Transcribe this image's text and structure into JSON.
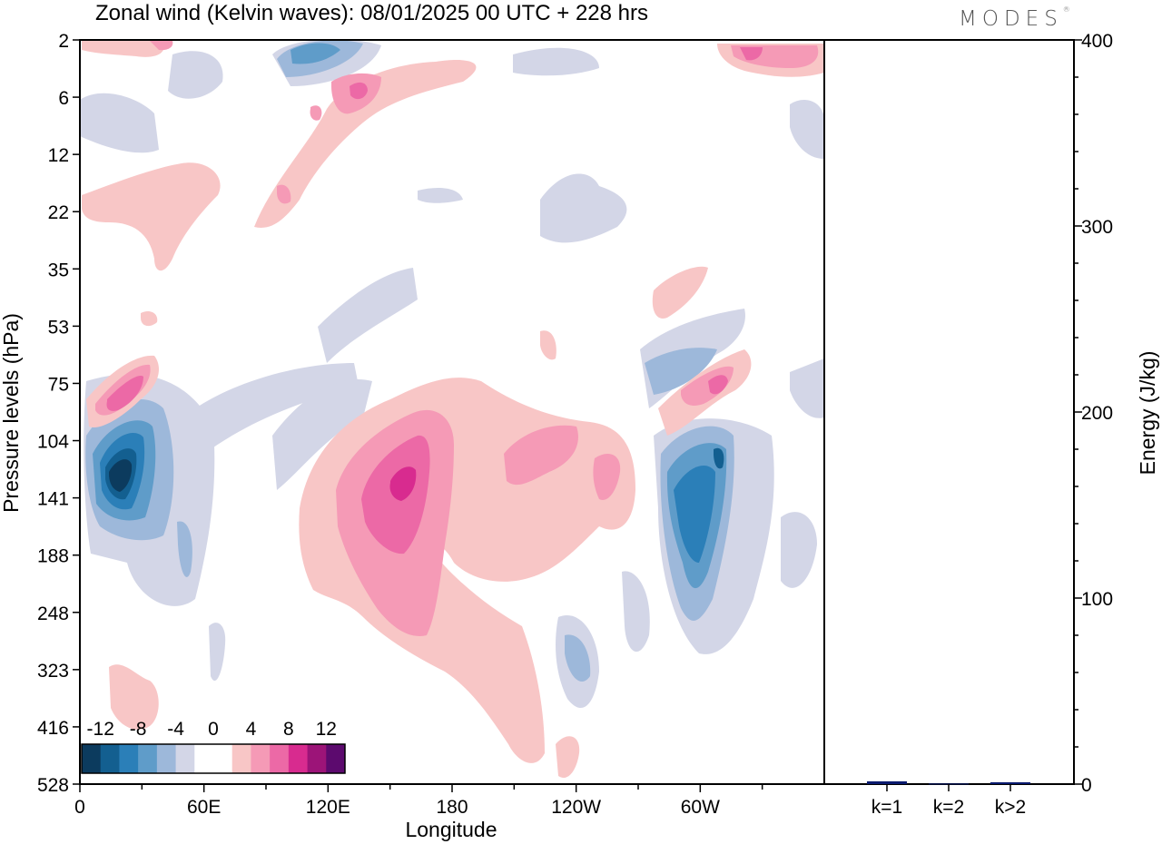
{
  "title": "Zonal wind (Kelvin waves):  08/01/2025  00 UTC  + 228 hrs",
  "brand": "MODES",
  "brand_mark": "®",
  "chart_data": [
    {
      "type": "heatmap",
      "title": "Zonal wind (Kelvin waves):  08/01/2025  00 UTC  + 228 hrs",
      "xlabel": "Longitude",
      "ylabel": "Pressure levels (hPa)",
      "x_tick_labels": [
        "0",
        "60E",
        "120E",
        "180",
        "120W",
        "60W"
      ],
      "x_range_deg": [
        0,
        360
      ],
      "y_tick_labels": [
        "2",
        "6",
        "12",
        "22",
        "35",
        "53",
        "75",
        "104",
        "141",
        "188",
        "248",
        "323",
        "416",
        "528"
      ],
      "colorbar": {
        "labels": [
          "-12",
          "-8",
          "-4",
          "0",
          "4",
          "8",
          "12"
        ],
        "colors": [
          "#0c3b5e",
          "#135f90",
          "#2b7fb8",
          "#5f9cc9",
          "#9db8da",
          "#d3d6e7",
          "#ffffff",
          "#ffffff",
          "#f8c6c6",
          "#f59ab6",
          "#ec69a6",
          "#d82b8f",
          "#9c1478",
          "#5c0a6e"
        ]
      },
      "features": [
        {
          "sign": "negative",
          "peak": "-12",
          "lon_deg": 20,
          "level_hPa": "141"
        },
        {
          "sign": "negative",
          "peak": "-8",
          "lon_deg": 300,
          "level_hPa": "141"
        },
        {
          "sign": "negative",
          "peak": "-8",
          "lon_deg": 115,
          "level_hPa": "2"
        },
        {
          "sign": "positive",
          "peak": "12",
          "lon_deg": 155,
          "level_hPa": "141"
        },
        {
          "sign": "positive",
          "peak": "8",
          "lon_deg": 25,
          "level_hPa": "75"
        },
        {
          "sign": "positive",
          "peak": "8",
          "lon_deg": 135,
          "level_hPa": "6"
        },
        {
          "sign": "positive",
          "peak": "8",
          "lon_deg": 320,
          "level_hPa": "75"
        },
        {
          "sign": "positive",
          "peak": "8",
          "lon_deg": 340,
          "level_hPa": "2"
        }
      ]
    },
    {
      "type": "bar",
      "ylabel": "Energy (J/kg)",
      "ylim": [
        0,
        400
      ],
      "y_tick_labels": [
        "0",
        "100",
        "200",
        "300",
        "400"
      ],
      "categories": [
        "k=1",
        "k=2",
        "k>2"
      ],
      "values": [
        1.5,
        0.3,
        1.0
      ],
      "bar_color": "#0a1a6e"
    }
  ]
}
